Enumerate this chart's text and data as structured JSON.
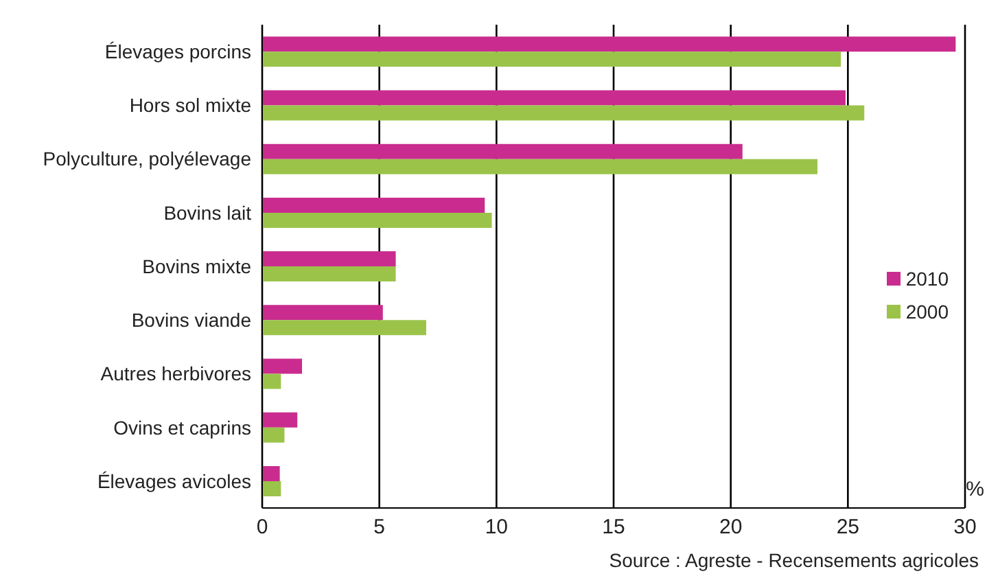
{
  "chart_data": {
    "type": "bar",
    "orientation": "horizontal",
    "categories": [
      "Élevages porcins",
      "Hors sol mixte",
      "Polyculture, polyélevage",
      "Bovins lait",
      "Bovins mixte",
      "Bovins viande",
      "Autres herbivores",
      "Ovins et caprins",
      "Élevages avicoles"
    ],
    "series": [
      {
        "name": "2010",
        "color": "#c92c8e",
        "values": [
          29.6,
          24.9,
          20.5,
          9.5,
          5.7,
          5.15,
          1.7,
          1.5,
          0.75
        ]
      },
      {
        "name": "2000",
        "color": "#9bc34a",
        "values": [
          24.7,
          25.7,
          23.7,
          9.8,
          5.7,
          7.0,
          0.8,
          0.95,
          0.8
        ]
      }
    ],
    "xlim": [
      0,
      30
    ],
    "xticks": [
      0,
      5,
      10,
      15,
      20,
      25,
      30
    ],
    "xlabel": "%",
    "grid": "x",
    "legend": "right",
    "annotations": [
      "Source : Agreste - Recensements agricoles"
    ]
  }
}
